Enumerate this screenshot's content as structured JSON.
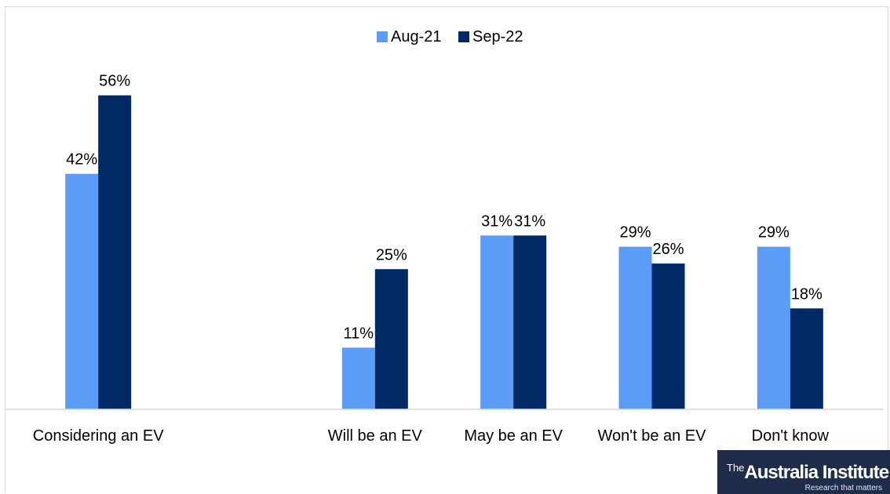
{
  "chart_data": {
    "type": "bar",
    "title": "",
    "xlabel": "",
    "ylabel": "",
    "categories": [
      "Considering an EV",
      "",
      "Will be an EV",
      "May be an EV",
      "Won't be an EV",
      "Don't know"
    ],
    "series": [
      {
        "name": "Aug-21",
        "color": "#5b9cf6",
        "values": [
          42,
          null,
          11,
          31,
          29,
          29
        ],
        "labels": [
          "42%",
          "",
          "11%",
          "31%",
          "29%",
          "29%"
        ]
      },
      {
        "name": "Sep-22",
        "color": "#002966",
        "values": [
          56,
          null,
          25,
          31,
          26,
          18
        ],
        "labels": [
          "56%",
          "",
          "25%",
          "31%",
          "26%",
          "18%"
        ]
      }
    ],
    "ylim": [
      0,
      60
    ],
    "grid": false,
    "legend": "top-center",
    "value_format": "percent"
  },
  "logo": {
    "the": "The",
    "name": "Australia Institute",
    "tagline": "Research that matters"
  }
}
